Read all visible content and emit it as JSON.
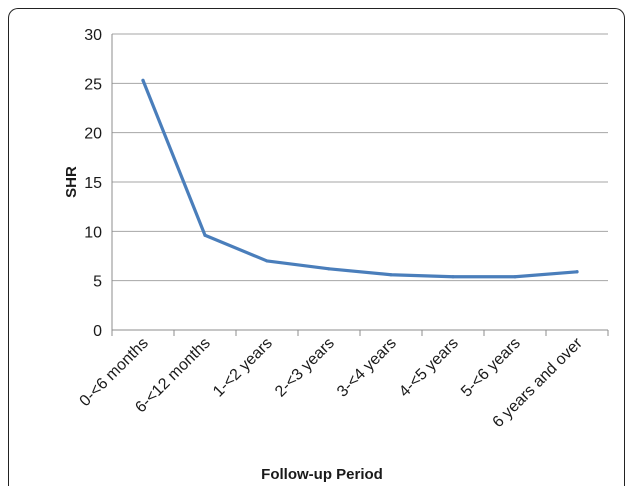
{
  "chart_data": {
    "type": "line",
    "title": "",
    "xlabel": "Follow-up Period",
    "ylabel": "SHR",
    "categories": [
      "0-<6 months",
      "6-<12 months",
      "1-<2 years",
      "2-<3 years",
      "3-<4 years",
      "4-<5 years",
      "5-<6 years",
      "6 years and over"
    ],
    "series": [
      {
        "values": [
          25.3,
          9.6,
          7.0,
          6.2,
          5.6,
          5.4,
          5.4,
          5.9
        ]
      }
    ],
    "ylim": [
      0,
      30
    ],
    "yticks": [
      "0",
      "5",
      "10",
      "15",
      "20",
      "25",
      "30"
    ],
    "grid": true,
    "legend": "none",
    "line_color": "#4a7ebb",
    "grid_color": "#a6a6a6"
  }
}
